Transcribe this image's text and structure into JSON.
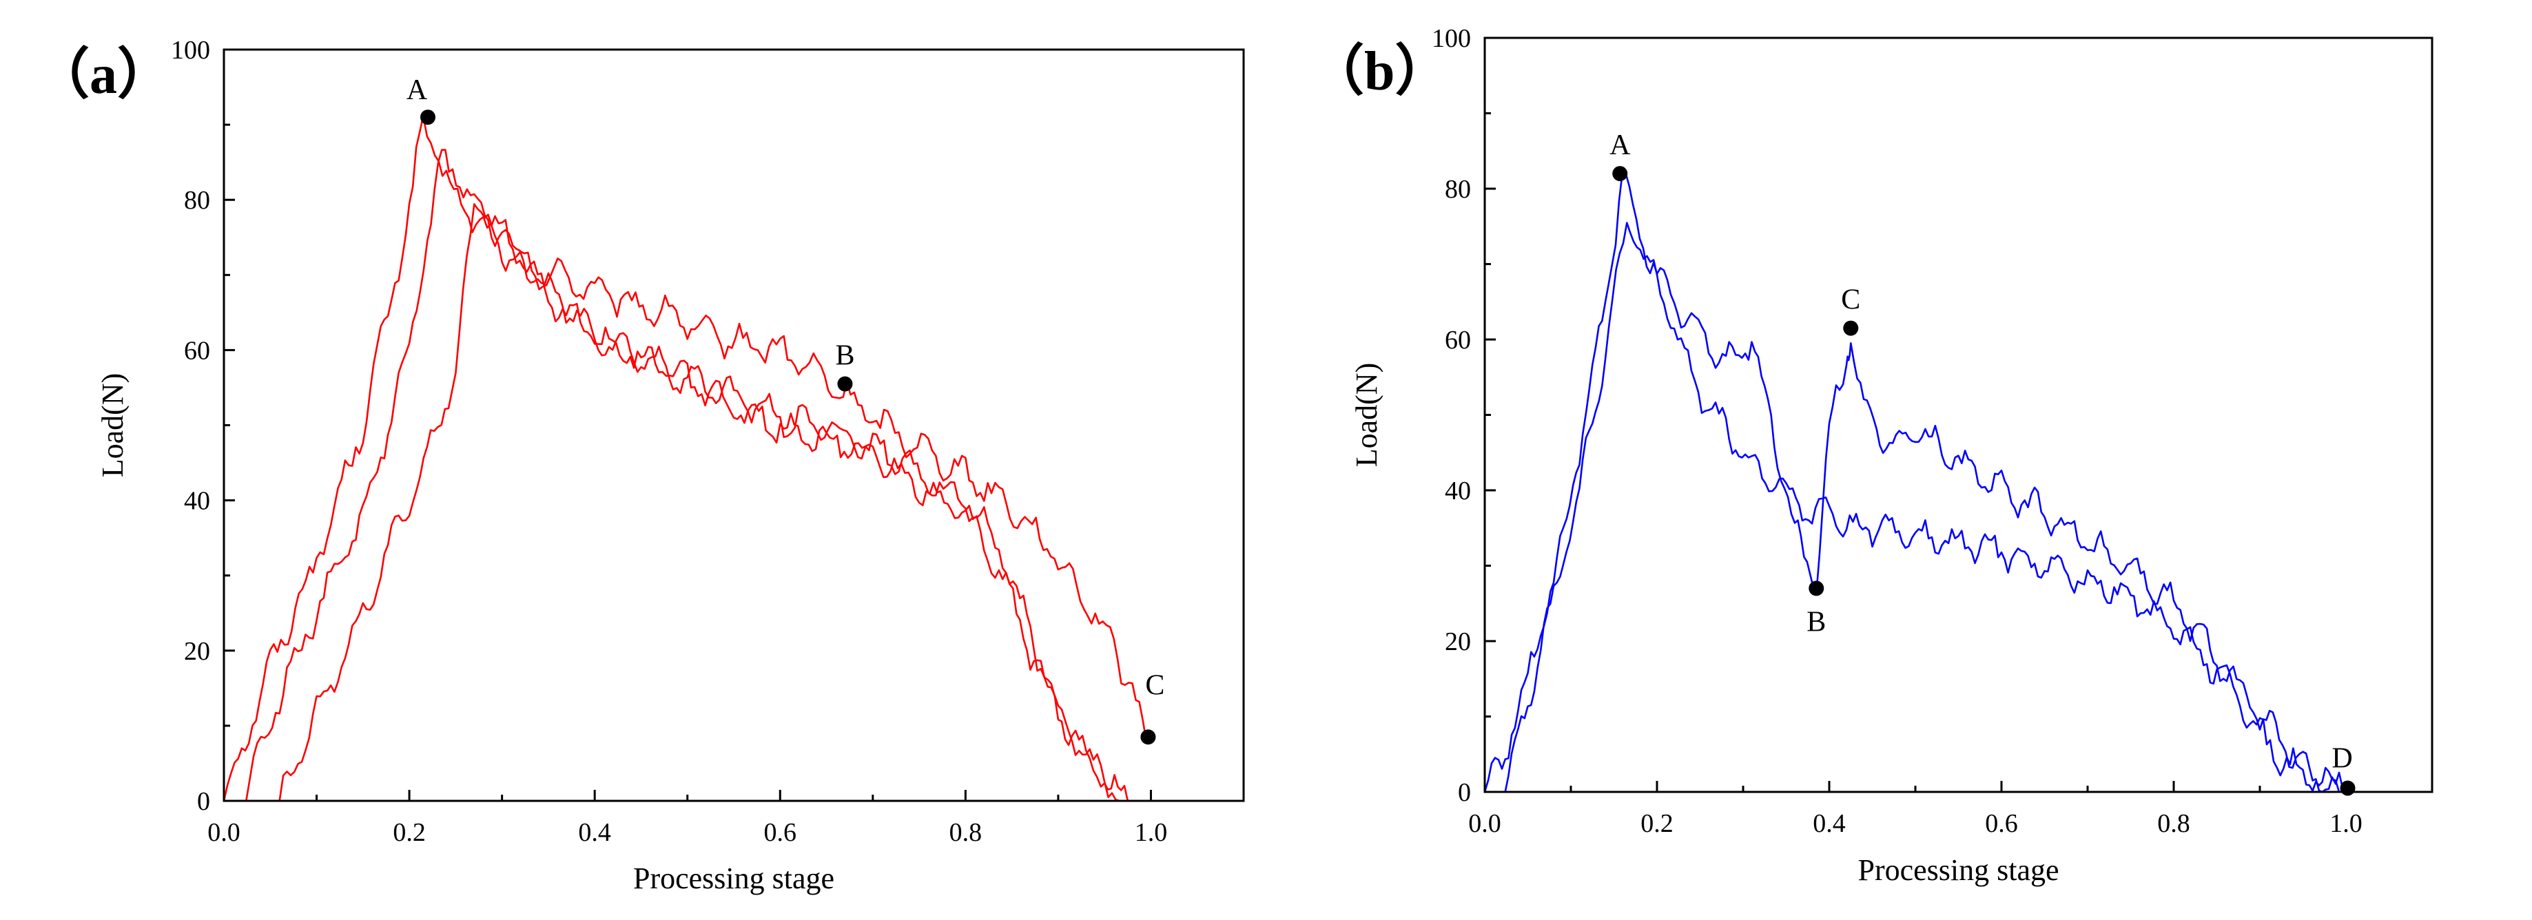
{
  "chart_data": [
    {
      "type": "line",
      "panel_label": "（a）",
      "xlabel": "Processing stage",
      "ylabel": "Load(N)",
      "xlim": [
        0.0,
        1.1
      ],
      "ylim": [
        0,
        100
      ],
      "x_ticks": [
        "0.0",
        "0.2",
        "0.4",
        "0.6",
        "0.8",
        "1.0"
      ],
      "y_ticks": [
        "0",
        "20",
        "40",
        "60",
        "80",
        "100"
      ],
      "color": "#ff0000",
      "series": [
        {
          "name": "curve-1",
          "x": [
            0.0,
            0.05,
            0.1,
            0.15,
            0.2,
            0.215,
            0.24,
            0.28,
            0.32,
            0.36,
            0.4,
            0.44,
            0.48,
            0.52,
            0.56,
            0.6,
            0.64,
            0.66,
            0.7,
            0.74,
            0.78,
            0.82,
            0.86,
            0.9,
            0.94,
            0.96,
            0.98,
            0.995
          ],
          "y": [
            0,
            18,
            32,
            50,
            78,
            91,
            82,
            76,
            71,
            70,
            68,
            66,
            65,
            62,
            61,
            60,
            57,
            55,
            51,
            48,
            45,
            42,
            38,
            32,
            25,
            20,
            15,
            8
          ]
        },
        {
          "name": "curve-2",
          "x": [
            0.02,
            0.06,
            0.1,
            0.15,
            0.2,
            0.235,
            0.27,
            0.3,
            0.35,
            0.4,
            0.45,
            0.5,
            0.55,
            0.6,
            0.64,
            0.68,
            0.72,
            0.76,
            0.8,
            0.84,
            0.87,
            0.9,
            0.93,
            0.95,
            0.97
          ],
          "y": [
            0,
            14,
            25,
            38,
            60,
            86,
            80,
            75,
            68,
            62,
            59,
            56,
            54,
            51,
            50,
            48,
            46,
            43,
            40,
            33,
            22,
            12,
            6,
            3,
            0
          ]
        },
        {
          "name": "curve-3",
          "x": [
            0.06,
            0.1,
            0.15,
            0.2,
            0.25,
            0.27,
            0.3,
            0.35,
            0.4,
            0.45,
            0.5,
            0.55,
            0.6,
            0.65,
            0.7,
            0.75,
            0.8,
            0.84,
            0.87,
            0.9,
            0.93,
            0.95,
            0.975
          ],
          "y": [
            0,
            12,
            25,
            40,
            57,
            80,
            76,
            67,
            62,
            59,
            56,
            52,
            50,
            48,
            46,
            42,
            38,
            30,
            20,
            12,
            6,
            3,
            0
          ]
        }
      ],
      "markers": [
        {
          "label": "A",
          "x": 0.22,
          "y": 91
        },
        {
          "label": "B",
          "x": 0.67,
          "y": 55.5
        },
        {
          "label": "C",
          "x": 0.997,
          "y": 8.5
        }
      ]
    },
    {
      "type": "line",
      "panel_label": "（b）",
      "xlabel": "Processing stage",
      "ylabel": "Load(N)",
      "xlim": [
        0.0,
        1.1
      ],
      "ylim": [
        0,
        100
      ],
      "x_ticks": [
        "0.0",
        "0.2",
        "0.4",
        "0.6",
        "0.8",
        "1.0"
      ],
      "y_ticks": [
        "0",
        "20",
        "40",
        "60",
        "80",
        "100"
      ],
      "color": "#0000ff",
      "series": [
        {
          "name": "curve-1",
          "x": [
            0.0,
            0.02,
            0.05,
            0.08,
            0.11,
            0.14,
            0.16,
            0.18,
            0.2,
            0.24,
            0.28,
            0.31,
            0.34,
            0.36,
            0.385,
            0.4,
            0.42,
            0.425,
            0.44,
            0.47,
            0.5,
            0.55,
            0.6,
            0.65,
            0.7,
            0.75,
            0.8,
            0.85,
            0.9,
            0.93,
            0.95,
            0.98,
            1.0
          ],
          "y": [
            0,
            4,
            15,
            28,
            45,
            65,
            81,
            75,
            68,
            62,
            57,
            60,
            45,
            35,
            27,
            48,
            58,
            61,
            50,
            46,
            48,
            44,
            40,
            37,
            33,
            30,
            25,
            18,
            10,
            6,
            3,
            1,
            0
          ]
        },
        {
          "name": "curve-2",
          "x": [
            0.02,
            0.05,
            0.08,
            0.11,
            0.14,
            0.165,
            0.2,
            0.24,
            0.28,
            0.31,
            0.35,
            0.38,
            0.4,
            0.42,
            0.45,
            0.5,
            0.55,
            0.6,
            0.65,
            0.7,
            0.75,
            0.8,
            0.85,
            0.9,
            0.92,
            0.95,
            0.98,
            1.0
          ],
          "y": [
            0,
            12,
            26,
            40,
            58,
            76,
            68,
            55,
            48,
            43,
            40,
            36,
            38,
            35,
            35,
            34,
            33,
            32,
            30,
            28,
            26,
            22,
            16,
            8,
            5,
            2,
            0.5,
            0
          ]
        }
      ],
      "markers": [
        {
          "label": "A",
          "x": 0.157,
          "y": 82
        },
        {
          "label": "B",
          "x": 0.385,
          "y": 27
        },
        {
          "label": "C",
          "x": 0.425,
          "y": 61.5
        },
        {
          "label": "D",
          "x": 1.002,
          "y": 0.5
        }
      ]
    }
  ]
}
